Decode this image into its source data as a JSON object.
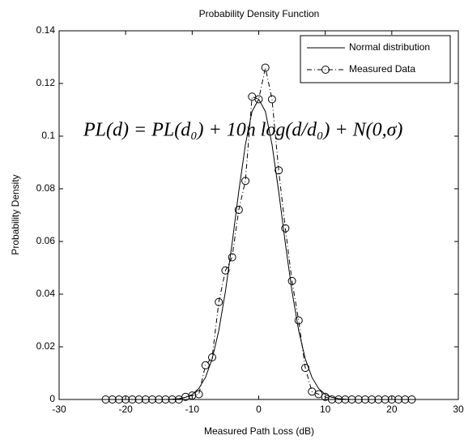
{
  "chart_data": {
    "type": "line",
    "title": "Probability Density Function",
    "x_label": "Measured Path Loss (dB)",
    "y_label": "Probability Density",
    "annotation": "PL(d) = PL(d₀) + 10n log(d/d₀) + N(0,σ)",
    "xlim": [
      -30,
      30
    ],
    "ylim": [
      0,
      0.14
    ],
    "xticks": [
      -30,
      -20,
      -10,
      0,
      10,
      20,
      30
    ],
    "yticks": [
      0,
      0.02,
      0.04,
      0.06,
      0.08,
      0.1,
      0.12,
      0.14
    ],
    "grid": false,
    "legend": "upper right",
    "series": [
      {
        "name": "Normal distribution",
        "color": "#000000",
        "style": "solid",
        "marker": "none",
        "x": [
          -30,
          -29,
          -28,
          -27,
          -26,
          -25,
          -24,
          -23,
          -22,
          -21,
          -20,
          -19,
          -18,
          -17,
          -16,
          -15,
          -14,
          -13,
          -12,
          -11,
          -10,
          -9,
          -8,
          -7,
          -6,
          -5,
          -4,
          -3,
          -2,
          -1,
          0,
          1,
          2,
          3,
          4,
          5,
          6,
          7,
          8,
          9,
          10,
          11,
          12,
          13,
          14,
          15,
          16,
          17,
          18,
          19,
          20,
          21,
          22,
          23,
          24,
          25,
          26,
          27,
          28,
          29,
          30
        ],
        "values": [
          0,
          0,
          0,
          0,
          0,
          0,
          0,
          0,
          0,
          0,
          0,
          0,
          0,
          0,
          0,
          0,
          0,
          0.0001,
          0.0003,
          0.0008,
          0.0019,
          0.0042,
          0.0084,
          0.0154,
          0.0262,
          0.0411,
          0.0593,
          0.079,
          0.0968,
          0.1094,
          0.114,
          0.1094,
          0.0968,
          0.079,
          0.0593,
          0.0411,
          0.0262,
          0.0154,
          0.0084,
          0.0042,
          0.0019,
          0.0008,
          0.0003,
          0.0001,
          0,
          0,
          0,
          0,
          0,
          0,
          0,
          0,
          0,
          0,
          0,
          0,
          0,
          0,
          0,
          0,
          0
        ]
      },
      {
        "name": "Measured Data",
        "color": "#000000",
        "style": "dashdot",
        "marker": "circle",
        "x": [
          -23,
          -22,
          -21,
          -20,
          -19,
          -18,
          -17,
          -16,
          -15,
          -14,
          -13,
          -12,
          -11,
          -10,
          -9,
          -8,
          -7,
          -6,
          -5,
          -4,
          -3,
          -2,
          -1,
          0,
          1,
          2,
          3,
          4,
          5,
          6,
          7,
          8,
          9,
          10,
          11,
          12,
          13,
          14,
          15,
          16,
          17,
          18,
          19,
          20,
          21,
          22,
          23
        ],
        "values": [
          0,
          0,
          0,
          0,
          0,
          0,
          0,
          0,
          0,
          0,
          0,
          0,
          0.001,
          0.0015,
          0.002,
          0.013,
          0.016,
          0.037,
          0.049,
          0.054,
          0.072,
          0.083,
          0.115,
          0.114,
          0.126,
          0.114,
          0.087,
          0.065,
          0.045,
          0.03,
          0.012,
          0.003,
          0.002,
          0.001,
          0,
          0,
          0,
          0,
          0,
          0,
          0,
          0,
          0,
          0,
          0,
          0,
          0
        ]
      }
    ]
  }
}
